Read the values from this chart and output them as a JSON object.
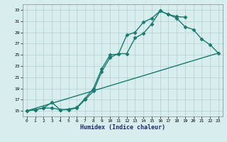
{
  "title": "",
  "xlabel": "Humidex (Indice chaleur)",
  "xlim": [
    -0.5,
    23.5
  ],
  "ylim": [
    14,
    34
  ],
  "xticks": [
    0,
    1,
    2,
    3,
    4,
    5,
    6,
    7,
    8,
    9,
    10,
    11,
    12,
    13,
    14,
    15,
    16,
    17,
    18,
    19,
    20,
    21,
    22,
    23
  ],
  "yticks": [
    15,
    17,
    19,
    21,
    23,
    25,
    27,
    29,
    31,
    33
  ],
  "color": "#1a7a6e",
  "bg_color": "#d8eeee",
  "grid_color": "#b0cfcf",
  "line1_x": [
    0,
    1,
    2,
    3,
    4,
    5,
    6,
    7,
    8,
    9,
    10,
    11,
    12,
    13,
    14,
    15,
    16,
    17,
    18,
    19,
    20,
    21,
    22,
    23
  ],
  "line1_y": [
    15,
    15.2,
    15.5,
    16.5,
    15.2,
    15.3,
    15.6,
    17.2,
    19.0,
    22.5,
    25.0,
    25.1,
    28.5,
    29.0,
    30.8,
    31.5,
    32.8,
    32.2,
    31.8,
    31.7,
    null,
    null,
    null,
    null
  ],
  "line2_x": [
    0,
    1,
    2,
    3,
    4,
    5,
    6,
    7,
    8,
    9,
    10,
    11,
    12,
    13,
    14,
    15,
    16,
    17,
    18,
    19,
    20,
    21,
    22,
    23
  ],
  "line2_y": [
    15,
    15.2,
    15.5,
    15.5,
    15.2,
    15.2,
    15.5,
    17.0,
    18.5,
    22.0,
    24.5,
    25.2,
    25.2,
    28.0,
    28.8,
    30.5,
    32.8,
    32.2,
    31.5,
    30.0,
    29.5,
    27.8,
    26.8,
    25.3
  ],
  "line3_x": [
    0,
    23
  ],
  "line3_y": [
    15,
    25.3
  ],
  "marker": "D",
  "markersize": 2.5,
  "linewidth": 1.0
}
